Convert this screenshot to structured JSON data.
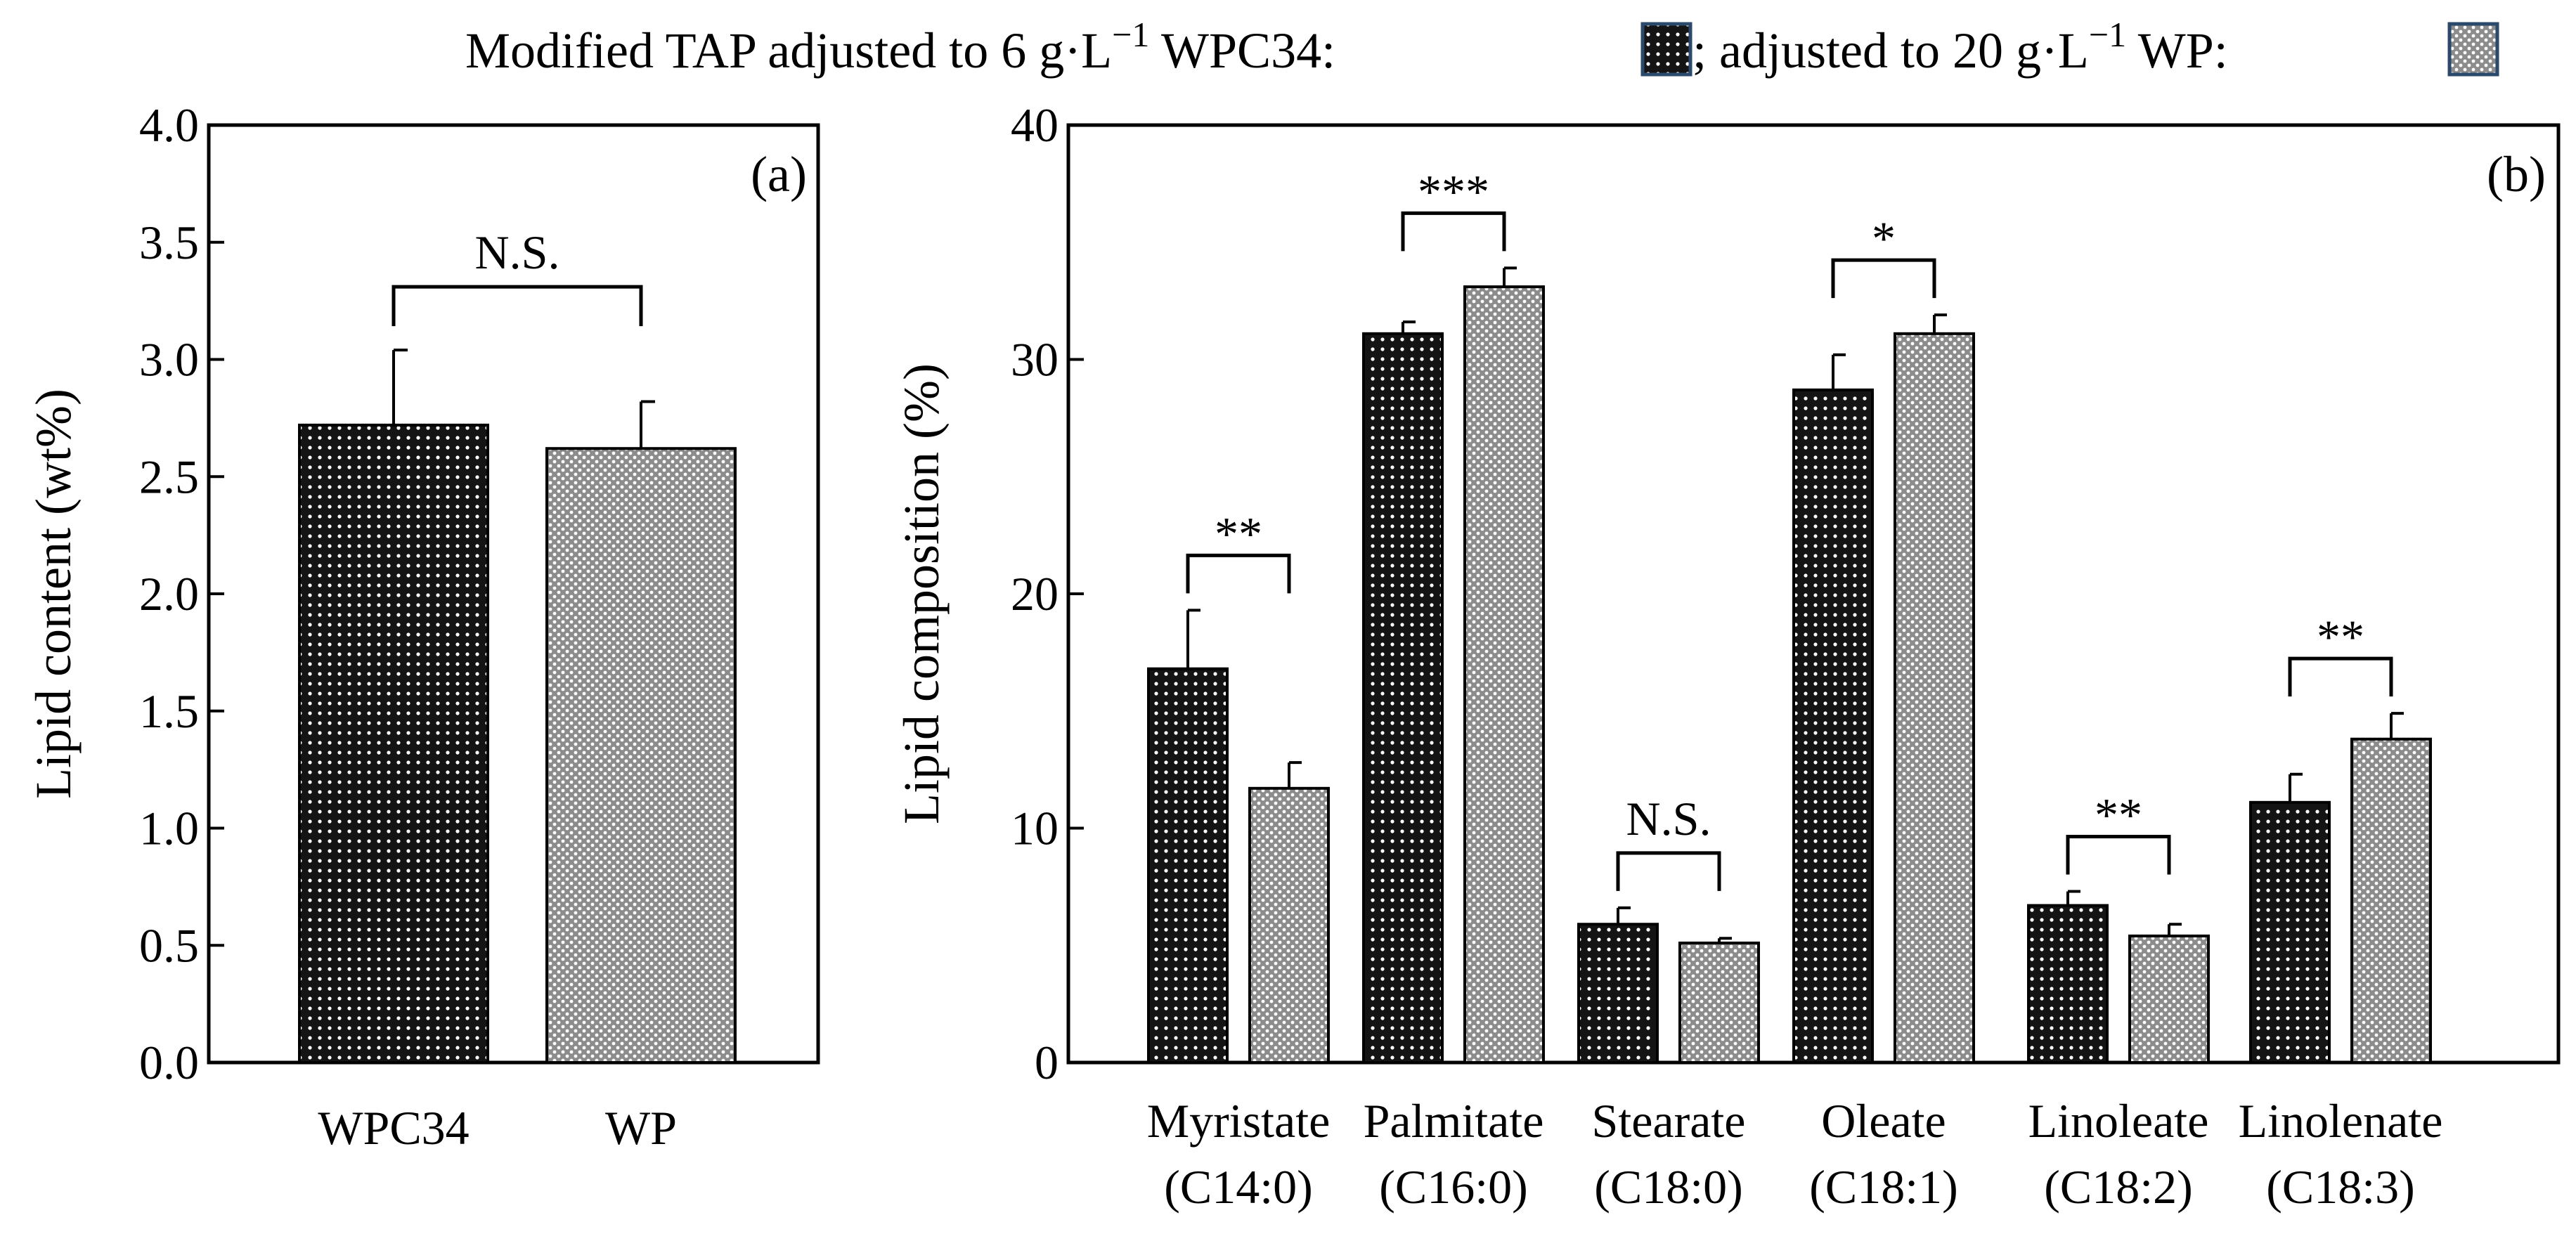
{
  "legend": {
    "prefix": "Modified TAP adjusted to 6 g·L",
    "sup1": "−1",
    "mid": " WPC34:",
    "sep": "; adjusted to 20 g·L",
    "sup2": "−1",
    "end": " WP:"
  },
  "colors": {
    "wpc34_fill": "#141414",
    "wp_fill": "#8c8c8c",
    "legend_border": "#2b4a6b"
  },
  "chart_data": [
    {
      "type": "bar",
      "panel_label": "(a)",
      "ylabel": "Lipid content (wt%)",
      "ylim": [
        0,
        4
      ],
      "yticks": [
        "0.0",
        "0.5",
        "1.0",
        "1.5",
        "2.0",
        "2.5",
        "3.0",
        "3.5",
        "4.0"
      ],
      "categories": [
        "WPC34",
        "WP"
      ],
      "values": [
        2.72,
        2.62
      ],
      "errors": [
        0.32,
        0.2
      ],
      "significance": [
        {
          "label": "N.S.",
          "between": [
            0,
            1
          ]
        }
      ]
    },
    {
      "type": "bar",
      "panel_label": "(b)",
      "ylabel": "Lipid composition (%)",
      "ylim": [
        0,
        40
      ],
      "yticks": [
        "0",
        "10",
        "20",
        "30",
        "40"
      ],
      "categories": [
        {
          "name": "Myristate",
          "code": "(C14:0)"
        },
        {
          "name": "Palmitate",
          "code": "(C16:0)"
        },
        {
          "name": "Stearate",
          "code": "(C18:0)"
        },
        {
          "name": "Oleate",
          "code": "(C18:1)"
        },
        {
          "name": "Linoleate",
          "code": "(C18:2)"
        },
        {
          "name": "Linolenate",
          "code": "(C18:3)"
        }
      ],
      "series": [
        {
          "name": "WPC34",
          "values": [
            16.8,
            31.1,
            5.9,
            28.7,
            6.7,
            11.1
          ],
          "errors": [
            2.5,
            0.5,
            0.7,
            1.5,
            0.6,
            1.2
          ]
        },
        {
          "name": "WP",
          "values": [
            11.7,
            33.1,
            5.1,
            31.1,
            5.4,
            13.8
          ],
          "errors": [
            1.1,
            0.8,
            0.2,
            0.8,
            0.5,
            1.1
          ]
        }
      ],
      "significance": [
        "**",
        "***",
        "N.S.",
        "*",
        "**",
        "**"
      ]
    }
  ]
}
